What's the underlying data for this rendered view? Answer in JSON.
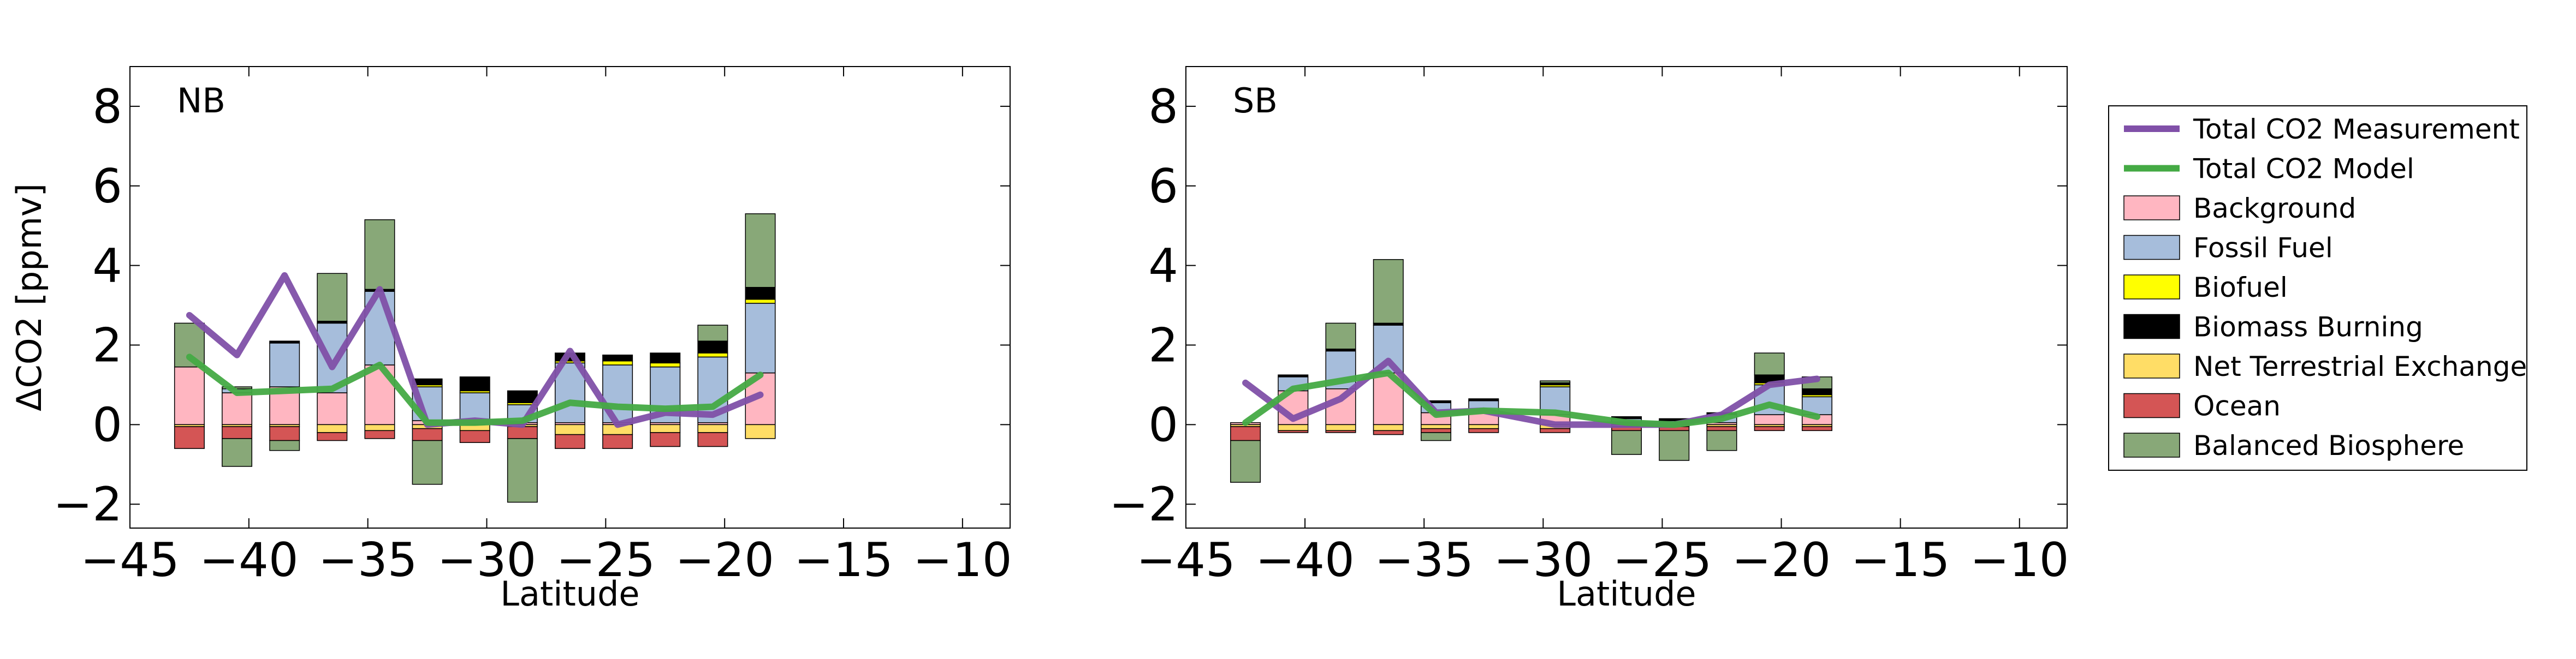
{
  "colors": {
    "Background": "#ffb6c1",
    "Fossil Fuel": "#a6bddb",
    "Biofuel": "#ffff00",
    "Biomass Burning": "#000000",
    "Net Terrestrial Exchange": "#ffdd66",
    "Ocean": "#d45555",
    "Balanced Biosphere": "#88a878",
    "Total CO2 Measurement": "#8050a8",
    "Total CO2 Model": "#44aa44"
  },
  "chart_data": [
    {
      "type": "bar",
      "panel_label": "NB",
      "xlabel": "Latitude",
      "ylabel": "ΔCO2 [ppmv]",
      "xlim": [
        -45,
        -8
      ],
      "ylim": [
        -2.6,
        9
      ],
      "xticks": [
        -45,
        -40,
        -35,
        -30,
        -25,
        -20,
        -15,
        -10
      ],
      "yticks": [
        -2,
        0,
        2,
        4,
        6,
        8
      ],
      "xtick_labels": [
        "−45",
        "−40",
        "−35",
        "−30",
        "−25",
        "−20",
        "−15",
        "−10"
      ],
      "ytick_labels": [
        "−2",
        "0",
        "2",
        "4",
        "6",
        "8"
      ],
      "grid": false,
      "bar_width": 1.25,
      "bars": [
        {
          "x": -42.5,
          "pos": {
            "Background": 1.45,
            "Fossil Fuel": 0.0,
            "Biofuel": 0.0,
            "Biomass Burning": 0.0,
            "Balanced Biosphere": 1.1
          },
          "neg": {
            "Net Terrestrial Exchange": 0.05,
            "Ocean": 0.55,
            "Balanced Biosphere": 0.0
          }
        },
        {
          "x": -40.5,
          "pos": {
            "Background": 0.8,
            "Fossil Fuel": 0.1,
            "Biofuel": 0.0,
            "Biomass Burning": 0.0,
            "Balanced Biosphere": 0.05
          },
          "neg": {
            "Net Terrestrial Exchange": 0.05,
            "Ocean": 0.3,
            "Balanced Biosphere": 0.7
          }
        },
        {
          "x": -38.5,
          "pos": {
            "Background": 0.95,
            "Fossil Fuel": 1.1,
            "Biofuel": 0.0,
            "Biomass Burning": 0.05,
            "Balanced Biosphere": 0.0
          },
          "neg": {
            "Net Terrestrial Exchange": 0.05,
            "Ocean": 0.35,
            "Balanced Biosphere": 0.25
          }
        },
        {
          "x": -36.5,
          "pos": {
            "Background": 0.8,
            "Fossil Fuel": 1.75,
            "Biofuel": 0.0,
            "Biomass Burning": 0.05,
            "Balanced Biosphere": 1.2
          },
          "neg": {
            "Net Terrestrial Exchange": 0.2,
            "Ocean": 0.2,
            "Balanced Biosphere": 0.0
          }
        },
        {
          "x": -34.5,
          "pos": {
            "Background": 1.5,
            "Fossil Fuel": 1.85,
            "Biofuel": 0.0,
            "Biomass Burning": 0.05,
            "Balanced Biosphere": 1.75
          },
          "neg": {
            "Net Terrestrial Exchange": 0.15,
            "Ocean": 0.2,
            "Balanced Biosphere": 0.0
          }
        },
        {
          "x": -32.5,
          "pos": {
            "Background": 0.1,
            "Fossil Fuel": 0.85,
            "Biofuel": 0.05,
            "Biomass Burning": 0.15,
            "Balanced Biosphere": 0.0
          },
          "neg": {
            "Net Terrestrial Exchange": 0.1,
            "Ocean": 0.3,
            "Balanced Biosphere": 1.1
          }
        },
        {
          "x": -30.5,
          "pos": {
            "Background": 0.05,
            "Fossil Fuel": 0.75,
            "Biofuel": 0.05,
            "Biomass Burning": 0.35,
            "Balanced Biosphere": 0.0
          },
          "neg": {
            "Net Terrestrial Exchange": 0.15,
            "Ocean": 0.3,
            "Balanced Biosphere": 0.0
          }
        },
        {
          "x": -28.5,
          "pos": {
            "Background": 0.05,
            "Fossil Fuel": 0.45,
            "Biofuel": 0.05,
            "Biomass Burning": 0.3,
            "Balanced Biosphere": 0.0
          },
          "neg": {
            "Net Terrestrial Exchange": 0.05,
            "Ocean": 0.3,
            "Balanced Biosphere": 1.6
          }
        },
        {
          "x": -26.5,
          "pos": {
            "Background": 0.05,
            "Fossil Fuel": 1.5,
            "Biofuel": 0.05,
            "Biomass Burning": 0.2,
            "Balanced Biosphere": 0.0
          },
          "neg": {
            "Net Terrestrial Exchange": 0.25,
            "Ocean": 0.35,
            "Balanced Biosphere": 0.0
          }
        },
        {
          "x": -24.5,
          "pos": {
            "Background": 0.05,
            "Fossil Fuel": 1.45,
            "Biofuel": 0.1,
            "Biomass Burning": 0.15,
            "Balanced Biosphere": 0.0
          },
          "neg": {
            "Net Terrestrial Exchange": 0.25,
            "Ocean": 0.35,
            "Balanced Biosphere": 0.0
          }
        },
        {
          "x": -22.5,
          "pos": {
            "Background": 0.05,
            "Fossil Fuel": 1.4,
            "Biofuel": 0.1,
            "Biomass Burning": 0.25,
            "Balanced Biosphere": 0.0
          },
          "neg": {
            "Net Terrestrial Exchange": 0.2,
            "Ocean": 0.35,
            "Balanced Biosphere": 0.0
          }
        },
        {
          "x": -20.5,
          "pos": {
            "Background": 0.05,
            "Fossil Fuel": 1.65,
            "Biofuel": 0.1,
            "Biomass Burning": 0.3,
            "Balanced Biosphere": 0.4
          },
          "neg": {
            "Net Terrestrial Exchange": 0.2,
            "Ocean": 0.35,
            "Balanced Biosphere": 0.0
          }
        },
        {
          "x": -18.5,
          "pos": {
            "Background": 1.3,
            "Fossil Fuel": 1.75,
            "Biofuel": 0.1,
            "Biomass Burning": 0.3,
            "Balanced Biosphere": 1.85
          },
          "neg": {
            "Net Terrestrial Exchange": 0.35,
            "Ocean": 0.0,
            "Balanced Biosphere": 0.0
          }
        }
      ],
      "series": [
        {
          "name": "Total CO2 Measurement",
          "x": [
            -42.5,
            -40.5,
            -38.5,
            -36.5,
            -34.5,
            -32.5,
            -30.5,
            -28.5,
            -26.5,
            -24.5,
            -22.5,
            -20.5,
            -18.5
          ],
          "y": [
            2.75,
            1.75,
            3.75,
            1.45,
            3.4,
            0.0,
            0.1,
            0.0,
            1.85,
            0.0,
            0.3,
            0.25,
            0.75
          ]
        },
        {
          "name": "Total CO2 Model",
          "x": [
            -42.5,
            -40.5,
            -38.5,
            -36.5,
            -34.5,
            -32.5,
            -30.5,
            -28.5,
            -26.5,
            -24.5,
            -22.5,
            -20.5,
            -18.5
          ],
          "y": [
            1.7,
            0.8,
            0.85,
            0.9,
            1.5,
            0.05,
            0.05,
            0.1,
            0.55,
            0.45,
            0.4,
            0.45,
            1.25
          ]
        }
      ]
    },
    {
      "type": "bar",
      "panel_label": "SB",
      "xlabel": "Latitude",
      "ylabel": "",
      "xlim": [
        -45,
        -8
      ],
      "ylim": [
        -2.6,
        9
      ],
      "xticks": [
        -45,
        -40,
        -35,
        -30,
        -25,
        -20,
        -15,
        -10
      ],
      "yticks": [
        -2,
        0,
        2,
        4,
        6,
        8
      ],
      "xtick_labels": [
        "−45",
        "−40",
        "−35",
        "−30",
        "−25",
        "−20",
        "−15",
        "−10"
      ],
      "ytick_labels": [
        "−2",
        "0",
        "2",
        "4",
        "6",
        "8"
      ],
      "grid": false,
      "bar_width": 1.25,
      "bars": [
        {
          "x": -42.5,
          "pos": {
            "Background": 0.05,
            "Fossil Fuel": 0.0,
            "Biofuel": 0.0,
            "Biomass Burning": 0.0,
            "Balanced Biosphere": 0.0
          },
          "neg": {
            "Net Terrestrial Exchange": 0.05,
            "Ocean": 0.35,
            "Balanced Biosphere": 1.05
          }
        },
        {
          "x": -40.5,
          "pos": {
            "Background": 0.85,
            "Fossil Fuel": 0.35,
            "Biofuel": 0.0,
            "Biomass Burning": 0.05,
            "Balanced Biosphere": 0.0
          },
          "neg": {
            "Net Terrestrial Exchange": 0.15,
            "Ocean": 0.05,
            "Balanced Biosphere": 0.0
          }
        },
        {
          "x": -38.5,
          "pos": {
            "Background": 0.9,
            "Fossil Fuel": 0.95,
            "Biofuel": 0.0,
            "Biomass Burning": 0.05,
            "Balanced Biosphere": 0.65
          },
          "neg": {
            "Net Terrestrial Exchange": 0.15,
            "Ocean": 0.05,
            "Balanced Biosphere": 0.0
          }
        },
        {
          "x": -36.5,
          "pos": {
            "Background": 1.3,
            "Fossil Fuel": 1.2,
            "Biofuel": 0.0,
            "Biomass Burning": 0.05,
            "Balanced Biosphere": 1.6
          },
          "neg": {
            "Net Terrestrial Exchange": 0.15,
            "Ocean": 0.1,
            "Balanced Biosphere": 0.0
          }
        },
        {
          "x": -34.5,
          "pos": {
            "Background": 0.3,
            "Fossil Fuel": 0.25,
            "Biofuel": 0.0,
            "Biomass Burning": 0.05,
            "Balanced Biosphere": 0.0
          },
          "neg": {
            "Net Terrestrial Exchange": 0.1,
            "Ocean": 0.1,
            "Balanced Biosphere": 0.2
          }
        },
        {
          "x": -32.5,
          "pos": {
            "Background": 0.35,
            "Fossil Fuel": 0.25,
            "Biofuel": 0.0,
            "Biomass Burning": 0.05,
            "Balanced Biosphere": 0.0
          },
          "neg": {
            "Net Terrestrial Exchange": 0.1,
            "Ocean": 0.1,
            "Balanced Biosphere": 0.0
          }
        },
        {
          "x": -29.5,
          "pos": {
            "Background": 0.25,
            "Fossil Fuel": 0.7,
            "Biofuel": 0.05,
            "Biomass Burning": 0.05,
            "Balanced Biosphere": 0.05
          },
          "neg": {
            "Net Terrestrial Exchange": 0.1,
            "Ocean": 0.1,
            "Balanced Biosphere": 0.0
          }
        },
        {
          "x": -26.5,
          "pos": {
            "Background": 0.05,
            "Fossil Fuel": 0.1,
            "Biofuel": 0.0,
            "Biomass Burning": 0.05,
            "Balanced Biosphere": 0.0
          },
          "neg": {
            "Net Terrestrial Exchange": 0.05,
            "Ocean": 0.1,
            "Balanced Biosphere": 0.6
          }
        },
        {
          "x": -24.5,
          "pos": {
            "Background": 0.05,
            "Fossil Fuel": 0.05,
            "Biofuel": 0.0,
            "Biomass Burning": 0.05,
            "Balanced Biosphere": 0.0
          },
          "neg": {
            "Net Terrestrial Exchange": 0.05,
            "Ocean": 0.1,
            "Balanced Biosphere": 0.75
          }
        },
        {
          "x": -22.5,
          "pos": {
            "Background": 0.05,
            "Fossil Fuel": 0.2,
            "Biofuel": 0.0,
            "Biomass Burning": 0.05,
            "Balanced Biosphere": 0.0
          },
          "neg": {
            "Net Terrestrial Exchange": 0.05,
            "Ocean": 0.1,
            "Balanced Biosphere": 0.5
          }
        },
        {
          "x": -20.5,
          "pos": {
            "Background": 0.25,
            "Fossil Fuel": 0.75,
            "Biofuel": 0.05,
            "Biomass Burning": 0.2,
            "Balanced Biosphere": 0.55
          },
          "neg": {
            "Net Terrestrial Exchange": 0.05,
            "Ocean": 0.1,
            "Balanced Biosphere": 0.0
          }
        },
        {
          "x": -18.5,
          "pos": {
            "Background": 0.25,
            "Fossil Fuel": 0.45,
            "Biofuel": 0.05,
            "Biomass Burning": 0.15,
            "Balanced Biosphere": 0.3
          },
          "neg": {
            "Net Terrestrial Exchange": 0.05,
            "Ocean": 0.1,
            "Balanced Biosphere": 0.0
          }
        }
      ],
      "series": [
        {
          "name": "Total CO2 Measurement",
          "x": [
            -42.5,
            -40.5,
            -38.5,
            -36.5,
            -34.5,
            -32.5,
            -29.5,
            -26.5,
            -24.5,
            -22.5,
            -20.5,
            -18.5
          ],
          "y": [
            1.05,
            0.15,
            0.65,
            1.6,
            0.3,
            0.35,
            0.0,
            0.0,
            0.0,
            0.25,
            1.0,
            1.15
          ]
        },
        {
          "name": "Total CO2 Model",
          "x": [
            -42.5,
            -40.5,
            -38.5,
            -36.5,
            -34.5,
            -32.5,
            -29.5,
            -26.5,
            -24.5,
            -22.5,
            -20.5,
            -18.5
          ],
          "y": [
            0.05,
            0.9,
            1.1,
            1.3,
            0.25,
            0.35,
            0.3,
            0.05,
            0.0,
            0.15,
            0.5,
            0.2
          ]
        }
      ]
    }
  ],
  "legend": {
    "placement": "right",
    "entries": [
      {
        "label": "Total CO2 Measurement",
        "kind": "line",
        "key": "Total CO2 Measurement"
      },
      {
        "label": "Total CO2 Model",
        "kind": "line",
        "key": "Total CO2 Model"
      },
      {
        "label": "Background",
        "kind": "patch",
        "key": "Background"
      },
      {
        "label": "Fossil Fuel",
        "kind": "patch",
        "key": "Fossil Fuel"
      },
      {
        "label": "Biofuel",
        "kind": "patch",
        "key": "Biofuel"
      },
      {
        "label": "Biomass Burning",
        "kind": "patch",
        "key": "Biomass Burning"
      },
      {
        "label": "Net Terrestrial Exchange",
        "kind": "patch",
        "key": "Net Terrestrial Exchange"
      },
      {
        "label": "Ocean",
        "kind": "patch",
        "key": "Ocean"
      },
      {
        "label": "Balanced Biosphere",
        "kind": "patch",
        "key": "Balanced Biosphere"
      }
    ]
  }
}
